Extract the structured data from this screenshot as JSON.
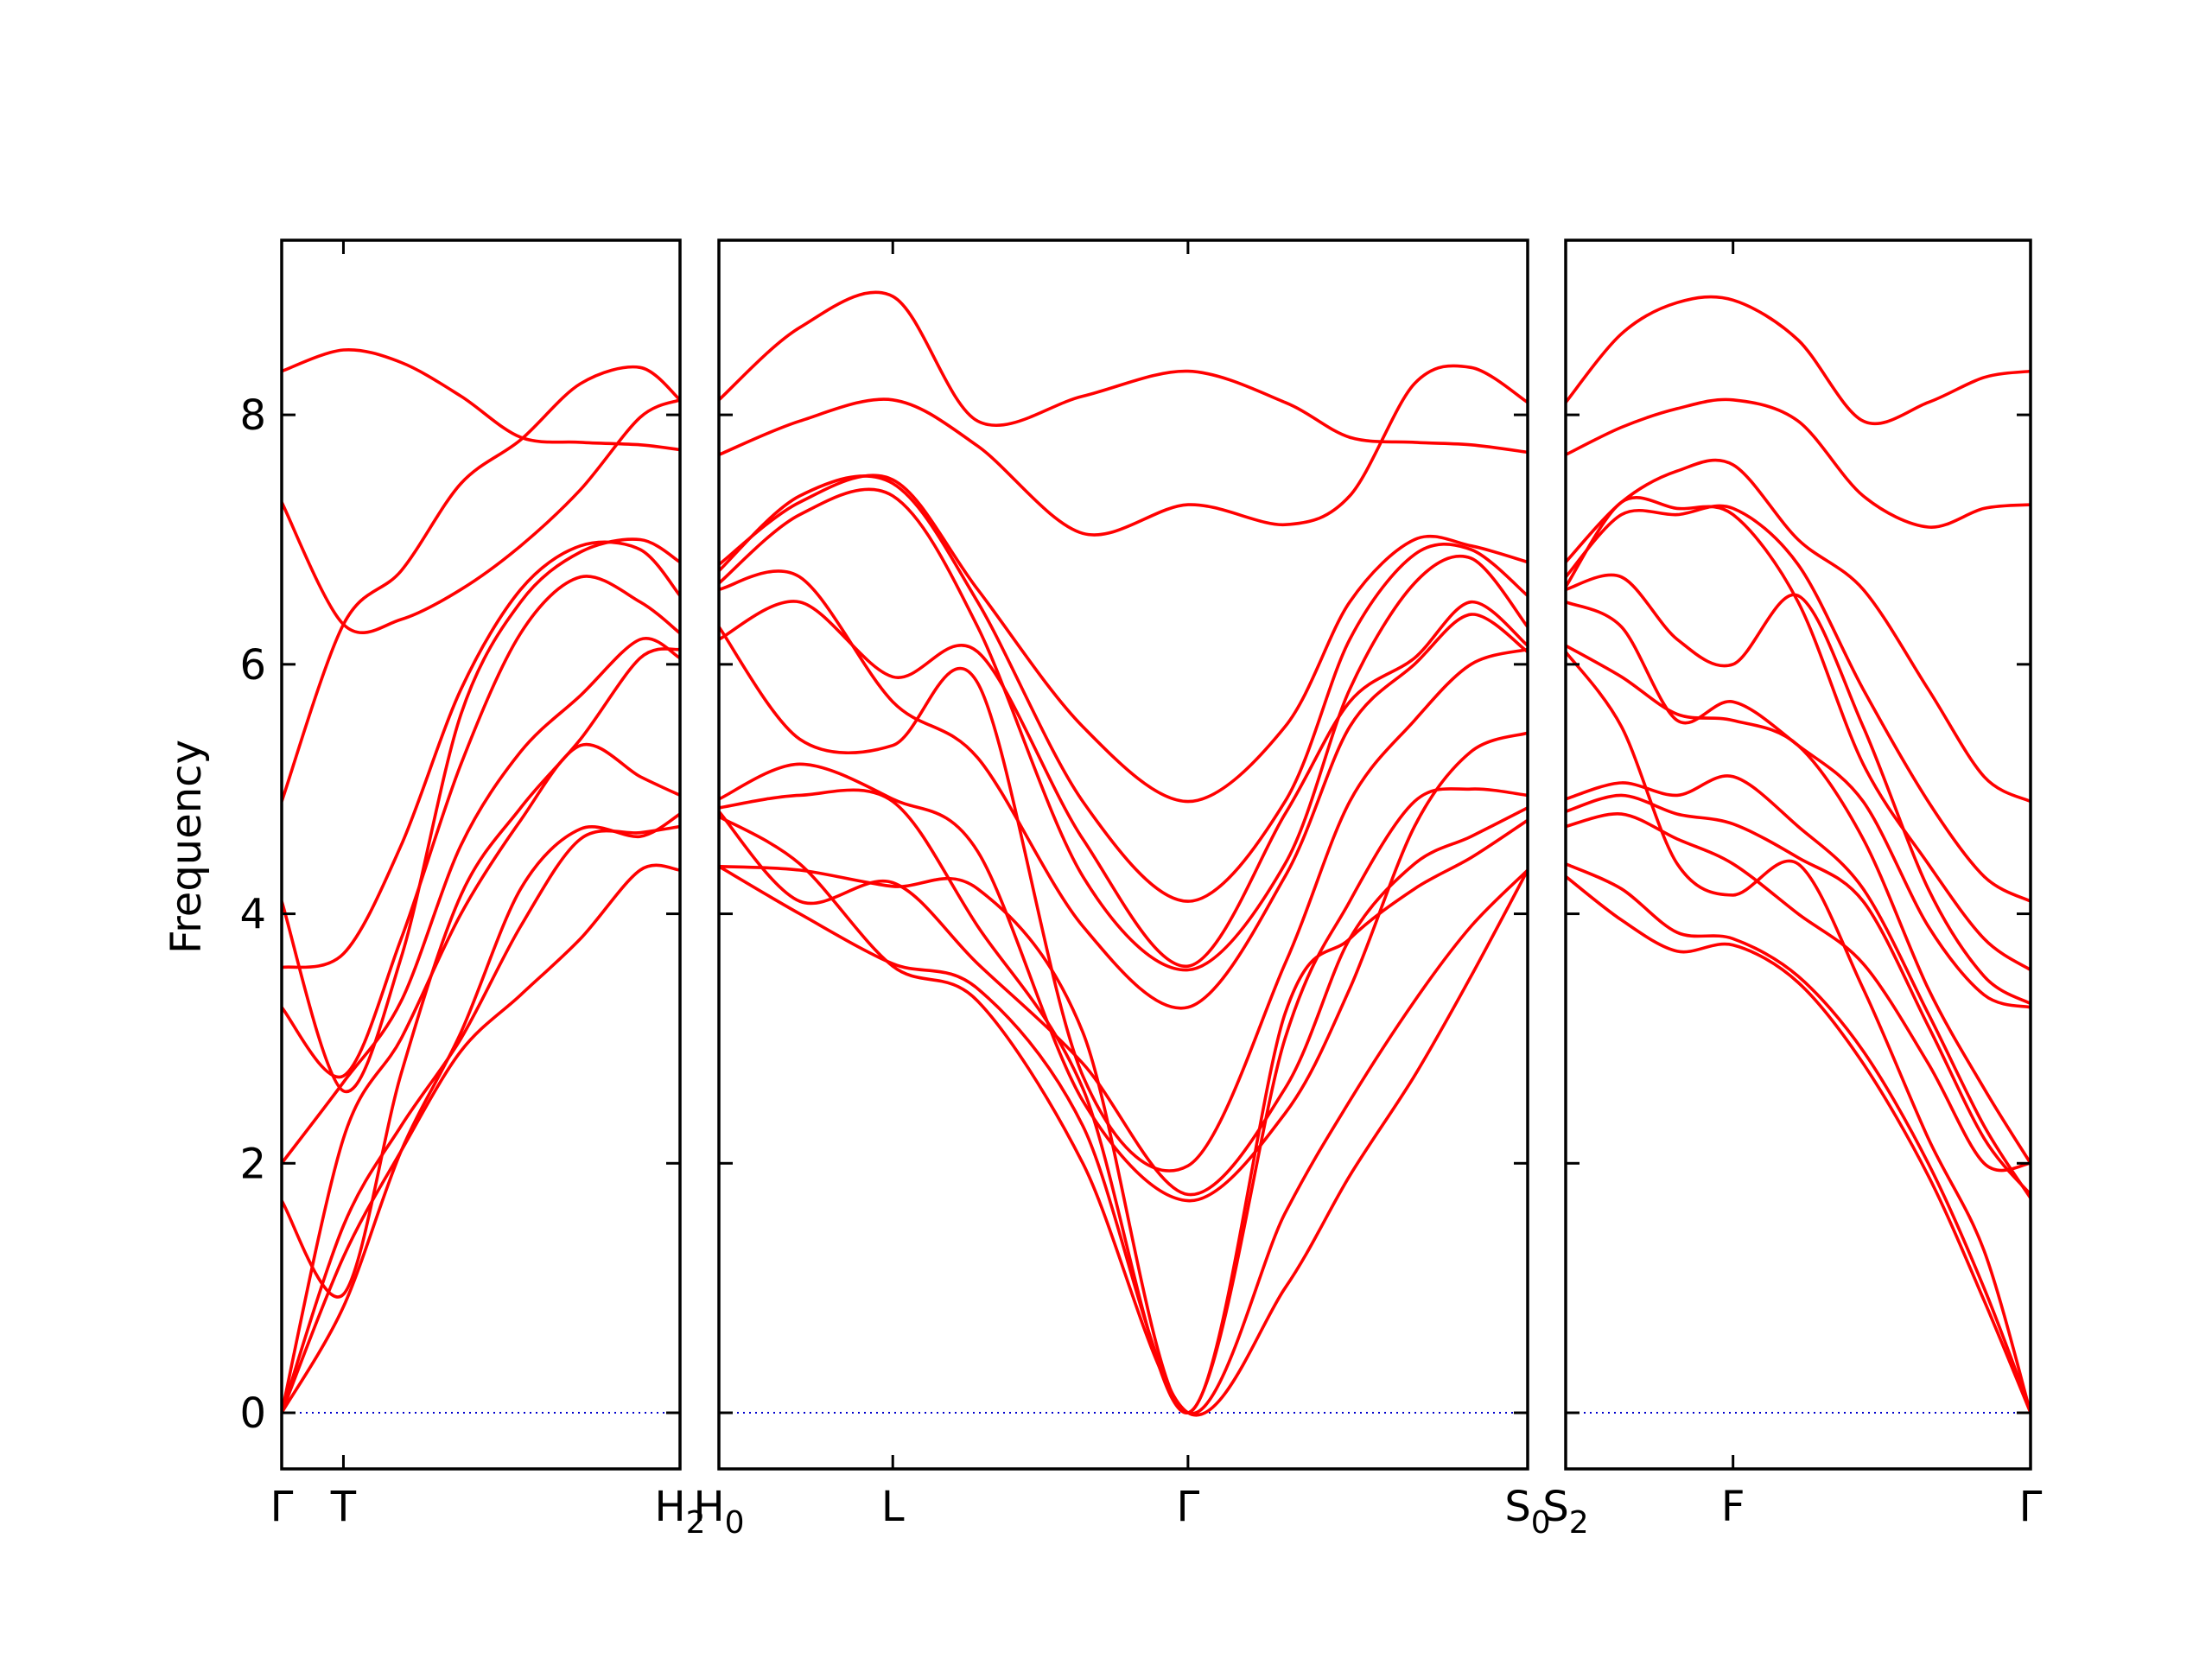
{
  "chart_data": {
    "type": "line",
    "ylabel": "Frequency",
    "ylim": [
      -0.45,
      9.4
    ],
    "yticks": [
      0,
      2,
      4,
      6,
      8
    ],
    "grid": false,
    "colors": {
      "band": "#ff0000",
      "zero_line": "#0000cc",
      "frame": "#000000"
    },
    "panels": [
      {
        "xlim": [
          0,
          1
        ],
        "xticks": [
          {
            "x": 0,
            "label": "Γ"
          },
          {
            "x": 0.155,
            "label": "T"
          },
          {
            "x": 1,
            "label": "H",
            "sub": "2"
          }
        ],
        "x": [
          0,
          0.155,
          0.3,
          0.45,
          0.6,
          0.75,
          0.9,
          1
        ],
        "series": [
          {
            "values": [
              8.35,
              8.52,
              8.42,
              8.15,
              7.82,
              7.78,
              7.76,
              7.72
            ]
          },
          {
            "values": [
              7.3,
              6.32,
              6.36,
              6.6,
              6.95,
              7.4,
              7.98,
              8.12
            ]
          },
          {
            "values": [
              4.9,
              6.32,
              6.75,
              7.45,
              7.8,
              8.25,
              8.38,
              8.12
            ]
          },
          {
            "values": [
              4.1,
              2.58,
              3.65,
              5.6,
              6.5,
              6.9,
              7.0,
              6.82
            ]
          },
          {
            "values": [
              3.57,
              3.68,
              4.55,
              5.8,
              6.6,
              6.95,
              6.92,
              6.55
            ]
          },
          {
            "values": [
              3.25,
              2.7,
              3.8,
              5.2,
              6.25,
              6.7,
              6.5,
              6.25
            ]
          },
          {
            "values": [
              2.0,
              2.65,
              3.3,
              4.55,
              5.3,
              5.75,
              6.2,
              6.05
            ]
          },
          {
            "values": [
              1.7,
              0.95,
              2.72,
              4.15,
              4.85,
              5.4,
              6.05,
              6.12
            ]
          },
          {
            "values": [
              0,
              2.2,
              3.0,
              4.0,
              4.75,
              5.35,
              5.1,
              4.95
            ]
          },
          {
            "values": [
              0,
              0.85,
              2.1,
              3.05,
              4.2,
              4.68,
              4.62,
              4.8
            ]
          },
          {
            "values": [
              0,
              1.5,
              2.3,
              3.0,
              3.9,
              4.6,
              4.65,
              4.7
            ]
          },
          {
            "values": [
              0,
              1.25,
              2.1,
              2.9,
              3.35,
              3.8,
              4.35,
              4.35
            ]
          }
        ]
      },
      {
        "xlim": [
          0,
          1
        ],
        "xticks": [
          {
            "x": 0,
            "label": "H",
            "sub": "0"
          },
          {
            "x": 0.215,
            "label": "L"
          },
          {
            "x": 0.58,
            "label": "Γ"
          },
          {
            "x": 1,
            "label": "S",
            "sub": "0"
          }
        ],
        "x": [
          0,
          0.1,
          0.215,
          0.32,
          0.45,
          0.58,
          0.7,
          0.78,
          0.86,
          0.93,
          1
        ],
        "series": [
          {
            "values": [
              8.12,
              8.7,
              8.95,
              7.95,
              8.15,
              8.35,
              8.1,
              7.82,
              7.78,
              7.76,
              7.7
            ]
          },
          {
            "values": [
              7.68,
              7.95,
              8.12,
              7.75,
              7.05,
              7.28,
              7.12,
              7.35,
              8.25,
              8.38,
              8.1
            ]
          },
          {
            "values": [
              6.8,
              7.3,
              7.48,
              6.6,
              5.5,
              4.9,
              5.5,
              6.5,
              7.0,
              6.95,
              6.82
            ]
          },
          {
            "values": [
              6.75,
              7.35,
              7.45,
              6.5,
              4.9,
              4.1,
              4.9,
              6.2,
              6.88,
              6.92,
              6.55
            ]
          },
          {
            "values": [
              6.65,
              7.2,
              7.35,
              6.3,
              4.3,
              3.55,
              4.4,
              5.8,
              6.65,
              6.85,
              6.3
            ]
          },
          {
            "values": [
              6.2,
              6.5,
              5.9,
              6.1,
              4.6,
              3.58,
              4.8,
              5.7,
              6.05,
              6.5,
              6.15
            ]
          },
          {
            "values": [
              6.6,
              6.7,
              5.7,
              5.25,
              3.9,
              3.25,
              4.3,
              5.5,
              6.0,
              6.4,
              6.1
            ]
          },
          {
            "values": [
              6.3,
              5.4,
              5.35,
              5.85,
              2.7,
              1.98,
              3.6,
              4.9,
              5.55,
              6.0,
              6.12
            ]
          },
          {
            "values": [
              4.92,
              5.2,
              4.92,
              4.5,
              2.5,
              1.7,
              2.4,
              3.4,
              4.7,
              5.3,
              5.45
            ]
          },
          {
            "values": [
              4.85,
              4.95,
              4.9,
              3.9,
              2.6,
              0,
              3.0,
              4.1,
              4.9,
              5.0,
              4.95
            ]
          },
          {
            "values": [
              4.82,
              4.1,
              4.25,
              3.6,
              2.8,
              1.75,
              2.6,
              3.8,
              4.4,
              4.62,
              4.85
            ]
          },
          {
            "values": [
              4.38,
              4.35,
              4.22,
              4.2,
              3.05,
              0,
              3.2,
              3.8,
              4.2,
              4.45,
              4.75
            ]
          },
          {
            "values": [
              4.38,
              4.0,
              3.6,
              3.4,
              2.3,
              0,
              1.6,
              2.5,
              3.3,
              3.9,
              4.35
            ]
          },
          {
            "values": [
              4.78,
              4.4,
              3.58,
              3.3,
              2.0,
              0,
              1.0,
              1.9,
              2.7,
              3.5,
              4.35
            ]
          }
        ]
      },
      {
        "xlim": [
          0,
          1
        ],
        "xticks": [
          {
            "x": 0,
            "label": "S",
            "sub": "2"
          },
          {
            "x": 0.36,
            "label": "F"
          },
          {
            "x": 1,
            "label": "Γ"
          }
        ],
        "x": [
          0,
          0.12,
          0.24,
          0.36,
          0.5,
          0.64,
          0.78,
          0.9,
          1
        ],
        "series": [
          {
            "values": [
              8.1,
              8.65,
              8.9,
              8.92,
              8.6,
              7.95,
              8.1,
              8.3,
              8.35
            ]
          },
          {
            "values": [
              7.68,
              7.9,
              8.05,
              8.12,
              7.95,
              7.35,
              7.1,
              7.25,
              7.28
            ]
          },
          {
            "values": [
              6.82,
              7.3,
              7.55,
              7.6,
              7.0,
              6.6,
              5.8,
              5.1,
              4.9
            ]
          },
          {
            "values": [
              6.7,
              7.2,
              7.2,
              7.25,
              6.8,
              5.8,
              4.9,
              4.3,
              4.1
            ]
          },
          {
            "values": [
              6.62,
              7.3,
              7.25,
              7.2,
              6.5,
              5.2,
              4.4,
              3.8,
              3.55
            ]
          },
          {
            "values": [
              6.6,
              6.7,
              6.2,
              6.0,
              6.55,
              5.5,
              4.2,
              3.5,
              3.28
            ]
          },
          {
            "values": [
              6.5,
              6.3,
              5.55,
              5.7,
              5.35,
              4.9,
              3.9,
              3.35,
              3.25
            ]
          },
          {
            "values": [
              6.15,
              5.9,
              5.6,
              5.55,
              5.35,
              4.6,
              3.4,
              2.6,
              2.0
            ]
          },
          {
            "values": [
              4.92,
              5.05,
              4.95,
              5.1,
              4.7,
              4.2,
              3.2,
              2.3,
              1.72
            ]
          },
          {
            "values": [
              4.82,
              4.95,
              4.8,
              4.72,
              4.45,
              4.1,
              3.1,
              2.2,
              1.75
            ]
          },
          {
            "values": [
              4.7,
              4.8,
              4.6,
              4.4,
              4.0,
              3.6,
              2.8,
              2.0,
              2.0
            ]
          },
          {
            "values": [
              4.4,
              4.2,
              3.85,
              3.8,
              3.5,
              2.9,
              2.0,
              1.0,
              0.02
            ]
          },
          {
            "values": [
              4.3,
              3.95,
              3.7,
              3.75,
              3.45,
              2.8,
              1.9,
              0.9,
              0
            ]
          },
          {
            "values": [
              6.1,
              5.5,
              4.4,
              4.15,
              4.4,
              3.4,
              2.2,
              1.3,
              0
            ]
          }
        ]
      }
    ]
  }
}
